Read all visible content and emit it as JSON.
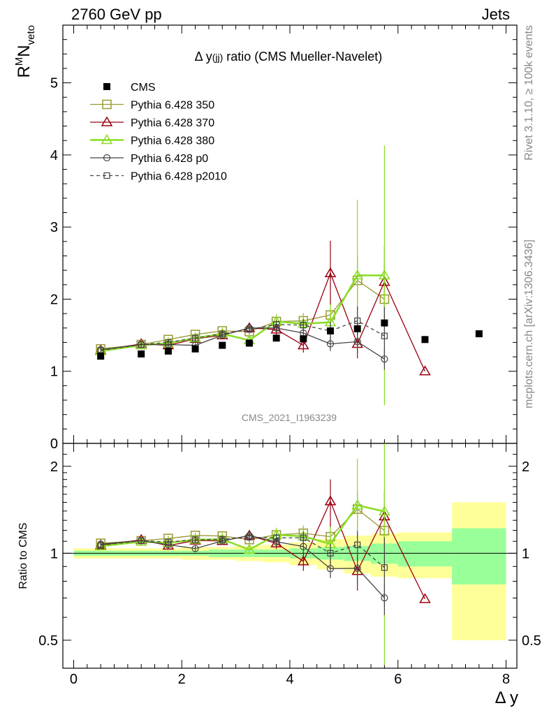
{
  "header": {
    "left": "2760 GeV pp",
    "right": "Jets",
    "title_prefix": "Δ y",
    "title_sub": "(jj)",
    "title_suffix": " ratio (CMS Mueller-Navelet)",
    "watermark": "CMS_2021_I1963239",
    "side_top": "Rivet 3.1.10, ≥ 100k events",
    "side_bottom": "mcplots.cern.ch [arXiv:1306.3436]"
  },
  "axes": {
    "ylabel_main": "R",
    "ylabel_main_sup": "M",
    "ylabel_main_N": "N",
    "ylabel_main_sub": "veto",
    "ylabel_ratio": "Ratio to CMS",
    "xlabel": "Δ y",
    "x_ticks": [
      "0",
      "2",
      "4",
      "6",
      "8"
    ],
    "y_ticks_main": [
      "0",
      "1",
      "2",
      "3",
      "4",
      "5"
    ],
    "y_ticks_ratio": [
      "0.5",
      "1",
      "2"
    ]
  },
  "legend": [
    {
      "label": "CMS"
    },
    {
      "label": "Pythia 6.428 350"
    },
    {
      "label": "Pythia 6.428 370"
    },
    {
      "label": "Pythia 6.428 380"
    },
    {
      "label": "Pythia 6.428 p0"
    },
    {
      "label": "Pythia 6.428 p2010"
    }
  ],
  "chart_data": {
    "type": "scatter",
    "xlim": [
      -0.2,
      8.2
    ],
    "ylim_main": [
      0,
      5.8
    ],
    "ylim_ratio": [
      0.4,
      2.4
    ],
    "ratio_scale": "log",
    "grid": false,
    "legend_position": "top-left",
    "data": {
      "name": "CMS",
      "x": [
        0.5,
        1.25,
        1.75,
        2.25,
        2.75,
        3.25,
        3.75,
        4.25,
        4.75,
        5.25,
        5.75,
        6.5,
        7.5
      ],
      "y": [
        1.21,
        1.24,
        1.28,
        1.31,
        1.36,
        1.39,
        1.46,
        1.45,
        1.56,
        1.59,
        1.67,
        1.44,
        1.52
      ]
    },
    "band": [
      {
        "xmin": 0.0,
        "xmax": 1.0,
        "stat": 0.02,
        "total": 0.04
      },
      {
        "xmin": 1.0,
        "xmax": 1.5,
        "stat": 0.02,
        "total": 0.04
      },
      {
        "xmin": 1.5,
        "xmax": 2.0,
        "stat": 0.02,
        "total": 0.04
      },
      {
        "xmin": 2.0,
        "xmax": 2.5,
        "stat": 0.02,
        "total": 0.05
      },
      {
        "xmin": 2.5,
        "xmax": 3.0,
        "stat": 0.03,
        "total": 0.05
      },
      {
        "xmin": 3.0,
        "xmax": 3.5,
        "stat": 0.03,
        "total": 0.06
      },
      {
        "xmin": 3.5,
        "xmax": 4.0,
        "stat": 0.03,
        "total": 0.07
      },
      {
        "xmin": 4.0,
        "xmax": 4.5,
        "stat": 0.04,
        "total": 0.09
      },
      {
        "xmin": 4.5,
        "xmax": 5.0,
        "stat": 0.05,
        "total": 0.12
      },
      {
        "xmin": 5.0,
        "xmax": 5.5,
        "stat": 0.06,
        "total": 0.15
      },
      {
        "xmin": 5.5,
        "xmax": 6.0,
        "stat": 0.08,
        "total": 0.17
      },
      {
        "xmin": 6.0,
        "xmax": 7.0,
        "stat": 0.1,
        "total": 0.18
      },
      {
        "xmin": 7.0,
        "xmax": 8.0,
        "stat": 0.22,
        "total": 0.5
      }
    ],
    "series": [
      {
        "name": "Pythia 6.428 350",
        "color": "#999933",
        "marker": "square-open",
        "dash": false,
        "x": [
          0.5,
          1.25,
          1.75,
          2.25,
          2.75,
          3.25,
          3.75,
          4.25,
          4.75,
          5.25,
          5.75
        ],
        "y": [
          1.31,
          1.37,
          1.44,
          1.51,
          1.56,
          1.55,
          1.69,
          1.7,
          1.78,
          2.26,
          2.0
        ],
        "err": [
          0.03,
          0.03,
          0.03,
          0.03,
          0.04,
          0.05,
          0.08,
          0.1,
          0.18,
          0.35,
          0.5
        ]
      },
      {
        "name": "Pythia 6.428 370",
        "color": "#990011",
        "marker": "triangle-open",
        "dash": false,
        "x": [
          0.5,
          1.25,
          1.75,
          2.25,
          2.75,
          3.25,
          3.75,
          4.25,
          4.75,
          5.25,
          5.75,
          6.5
        ],
        "y": [
          1.29,
          1.38,
          1.36,
          1.45,
          1.5,
          1.6,
          1.58,
          1.36,
          2.36,
          1.38,
          2.24,
          1.0
        ],
        "err": [
          0.03,
          0.03,
          0.03,
          0.03,
          0.04,
          0.05,
          0.07,
          0.1,
          0.45,
          0.2,
          0.5,
          0.0
        ]
      },
      {
        "name": "Pythia 6.428 380",
        "color": "#88dd22",
        "marker": "triangle-open",
        "dash": false,
        "x": [
          0.5,
          1.25,
          1.75,
          2.25,
          2.75,
          3.25,
          3.75,
          4.25,
          4.75,
          5.25,
          5.75
        ],
        "y": [
          1.28,
          1.36,
          1.39,
          1.46,
          1.52,
          1.43,
          1.69,
          1.66,
          1.68,
          2.33,
          2.33
        ],
        "err": [
          0.03,
          0.03,
          0.03,
          0.03,
          0.04,
          0.05,
          0.1,
          0.15,
          0.25,
          1.05,
          1.8
        ]
      },
      {
        "name": "Pythia 6.428 p0",
        "color": "#444444",
        "marker": "circle-open",
        "dash": false,
        "x": [
          0.5,
          1.25,
          1.75,
          2.25,
          2.75,
          3.25,
          3.75,
          4.25,
          4.75,
          5.25,
          5.75
        ],
        "y": [
          1.3,
          1.37,
          1.37,
          1.36,
          1.5,
          1.6,
          1.6,
          1.53,
          1.38,
          1.41,
          1.17
        ],
        "err": [
          0.03,
          0.03,
          0.03,
          0.03,
          0.04,
          0.06,
          0.06,
          0.08,
          0.1,
          0.15,
          0.15
        ]
      },
      {
        "name": "Pythia 6.428 p2010",
        "color": "#444444",
        "marker": "square-open-small",
        "dash": true,
        "x": [
          0.5,
          1.25,
          1.75,
          2.25,
          2.75,
          3.25,
          3.75,
          4.25,
          4.75,
          5.25,
          5.75
        ],
        "y": [
          1.29,
          1.37,
          1.4,
          1.46,
          1.52,
          1.58,
          1.65,
          1.64,
          1.56,
          1.7,
          1.49
        ],
        "err": [
          0.03,
          0.03,
          0.03,
          0.03,
          0.04,
          0.05,
          0.06,
          0.08,
          0.12,
          0.2,
          0.4
        ]
      }
    ]
  }
}
